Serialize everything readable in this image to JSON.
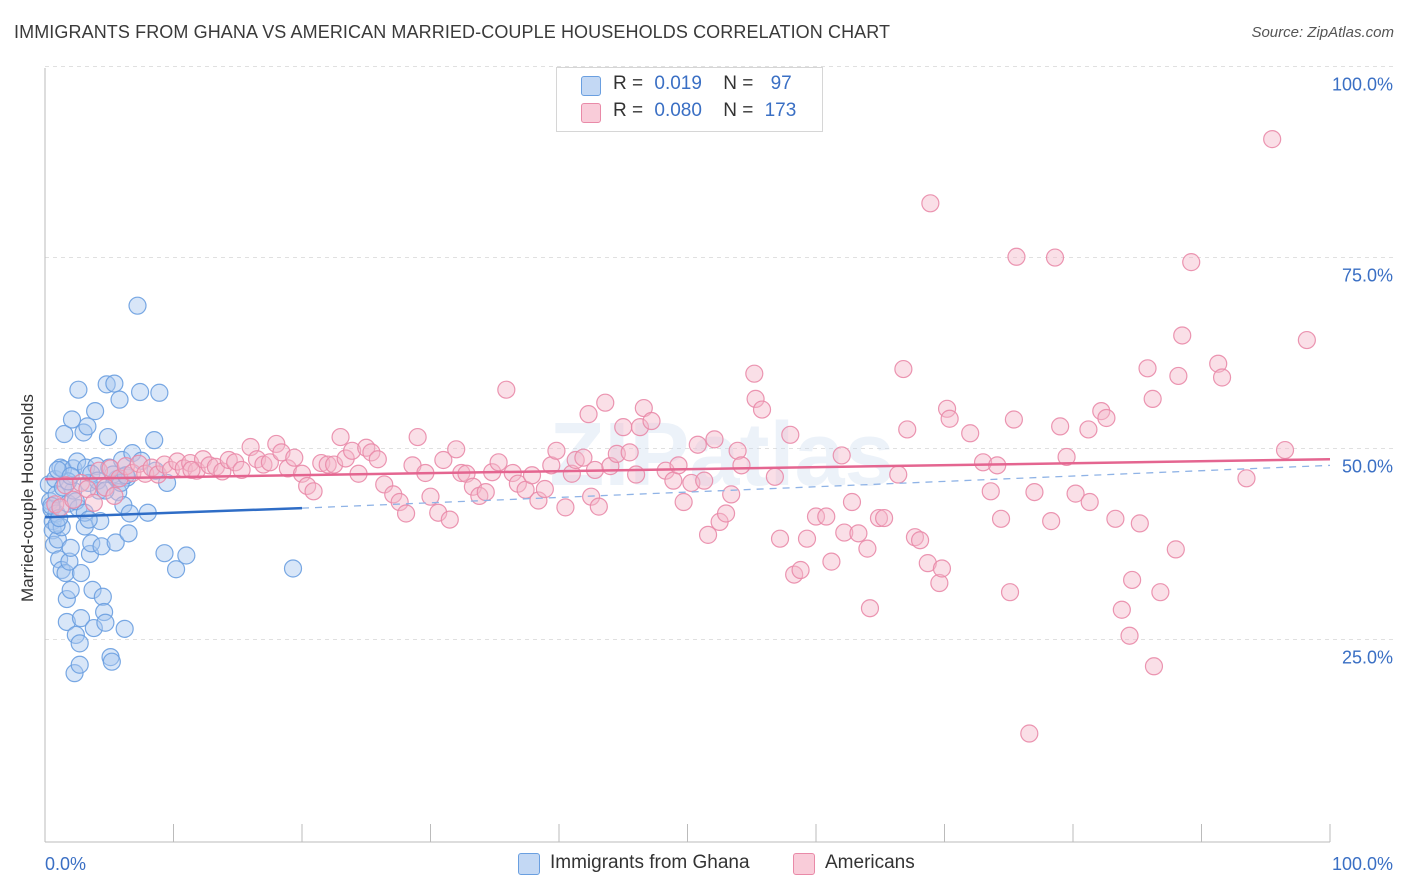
{
  "title": "IMMIGRANTS FROM GHANA VS AMERICAN MARRIED-COUPLE HOUSEHOLDS CORRELATION CHART",
  "source": "Source: ZipAtlas.com",
  "watermark": "ZIPatlas",
  "legend": {
    "rows": [
      {
        "r_label": "R =",
        "r_value": "0.019",
        "n_label": "N =",
        "n_value": "97"
      },
      {
        "r_label": "R =",
        "r_value": "0.080",
        "n_label": "N =",
        "n_value": "173"
      }
    ]
  },
  "bottom_legend": [
    "Immigrants from Ghana",
    "Americans"
  ],
  "colors": {
    "ghana_fill": "#a9c8f0",
    "ghana_stroke": "#6a9fe0",
    "ghana_line": "#2f6dc6",
    "americans_fill": "#f5b7ca",
    "americans_stroke": "#e98aa8",
    "americans_line": "#e46590",
    "axis_text": "#3a6fc4",
    "grid": "#e0e0e0"
  },
  "chart_data": {
    "type": "scatter",
    "title": "IMMIGRANTS FROM GHANA VS AMERICAN MARRIED-COUPLE HOUSEHOLDS CORRELATION CHART",
    "xlabel": "",
    "ylabel": "Married-couple Households",
    "xlim": [
      0,
      100
    ],
    "ylim": [
      0,
      105
    ],
    "x_tick_labels": [
      "0.0%",
      "100.0%"
    ],
    "y_ticks": [
      25,
      50,
      75,
      100
    ],
    "y_tick_labels": [
      "25.0%",
      "50.0%",
      "75.0%",
      "100.0%"
    ],
    "grid": true,
    "legend_position": "top-center",
    "series": [
      {
        "name": "Immigrants from Ghana",
        "r": 0.019,
        "n": 97,
        "trend": {
          "x": [
            0,
            20
          ],
          "y": [
            42.5,
            43.7
          ],
          "dashed_extension_to": [
            100,
            49.3
          ]
        },
        "points": [
          [
            0.3,
            46.8
          ],
          [
            0.4,
            44.6
          ],
          [
            0.5,
            43.6
          ],
          [
            0.6,
            42.0
          ],
          [
            0.6,
            40.8
          ],
          [
            0.7,
            38.9
          ],
          [
            0.8,
            47.5
          ],
          [
            0.9,
            45.5
          ],
          [
            0.9,
            43.0
          ],
          [
            1.0,
            39.6
          ],
          [
            1.1,
            37.0
          ],
          [
            1.2,
            49.0
          ],
          [
            1.3,
            41.2
          ],
          [
            1.3,
            35.6
          ],
          [
            1.4,
            48.8
          ],
          [
            1.5,
            53.4
          ],
          [
            1.6,
            35.2
          ],
          [
            1.7,
            31.8
          ],
          [
            1.7,
            28.8
          ],
          [
            1.8,
            44.3
          ],
          [
            1.9,
            36.7
          ],
          [
            2.0,
            38.5
          ],
          [
            2.0,
            33.0
          ],
          [
            2.1,
            55.3
          ],
          [
            2.2,
            48.9
          ],
          [
            2.2,
            46.0
          ],
          [
            2.3,
            22.1
          ],
          [
            2.4,
            27.1
          ],
          [
            2.5,
            49.8
          ],
          [
            2.6,
            59.2
          ],
          [
            2.6,
            43.7
          ],
          [
            2.7,
            26.0
          ],
          [
            2.7,
            23.2
          ],
          [
            2.8,
            35.2
          ],
          [
            2.8,
            29.3
          ],
          [
            3.0,
            53.6
          ],
          [
            3.1,
            41.3
          ],
          [
            3.2,
            49.0
          ],
          [
            3.3,
            54.4
          ],
          [
            3.4,
            47.0
          ],
          [
            3.5,
            37.7
          ],
          [
            3.6,
            39.1
          ],
          [
            3.7,
            33.0
          ],
          [
            3.8,
            28.0
          ],
          [
            3.9,
            56.4
          ],
          [
            4.0,
            49.2
          ],
          [
            4.2,
            46.0
          ],
          [
            4.3,
            42.0
          ],
          [
            4.4,
            38.7
          ],
          [
            4.5,
            32.1
          ],
          [
            4.6,
            30.1
          ],
          [
            4.7,
            28.7
          ],
          [
            4.8,
            59.9
          ],
          [
            4.9,
            53.0
          ],
          [
            5.0,
            49.0
          ],
          [
            5.1,
            24.2
          ],
          [
            5.2,
            23.6
          ],
          [
            5.4,
            60.0
          ],
          [
            5.5,
            39.2
          ],
          [
            5.6,
            47.5
          ],
          [
            5.7,
            45.8
          ],
          [
            5.8,
            57.9
          ],
          [
            6.0,
            50.0
          ],
          [
            6.1,
            44.1
          ],
          [
            6.2,
            27.9
          ],
          [
            6.4,
            47.7
          ],
          [
            6.5,
            40.4
          ],
          [
            6.6,
            43.0
          ],
          [
            6.8,
            50.9
          ],
          [
            7.2,
            70.2
          ],
          [
            7.4,
            58.9
          ],
          [
            7.5,
            49.9
          ],
          [
            8.0,
            43.1
          ],
          [
            8.5,
            52.6
          ],
          [
            8.6,
            48.6
          ],
          [
            8.9,
            58.8
          ],
          [
            9.3,
            37.8
          ],
          [
            9.5,
            47.0
          ],
          [
            10.2,
            35.7
          ],
          [
            11.0,
            37.5
          ],
          [
            0.5,
            44.0
          ],
          [
            0.9,
            41.5
          ],
          [
            1.1,
            42.4
          ],
          [
            1.4,
            46.4
          ],
          [
            1.8,
            47.2
          ],
          [
            2.4,
            44.6
          ],
          [
            3.1,
            43.1
          ],
          [
            3.6,
            48.2
          ],
          [
            4.1,
            47.3
          ],
          [
            4.7,
            46.0
          ],
          [
            5.3,
            48.1
          ],
          [
            5.9,
            47.0
          ],
          [
            6.3,
            48.0
          ],
          [
            1.0,
            48.7
          ],
          [
            2.0,
            47.9
          ],
          [
            3.4,
            42.2
          ],
          [
            19.3,
            35.8
          ]
        ]
      },
      {
        "name": "Americans",
        "r": 0.08,
        "n": 173,
        "trend": {
          "x": [
            0,
            100
          ],
          "y": [
            47.5,
            50.1
          ]
        },
        "points": [
          [
            0.8,
            44.2
          ],
          [
            1.2,
            43.8
          ],
          [
            1.6,
            46.7
          ],
          [
            2.2,
            44.8
          ],
          [
            2.8,
            47.0
          ],
          [
            3.3,
            46.2
          ],
          [
            3.8,
            44.4
          ],
          [
            4.2,
            48.6
          ],
          [
            4.7,
            46.4
          ],
          [
            5.1,
            48.9
          ],
          [
            5.4,
            45.3
          ],
          [
            5.8,
            47.6
          ],
          [
            6.3,
            49.2
          ],
          [
            6.8,
            48.3
          ],
          [
            7.3,
            49.5
          ],
          [
            7.8,
            48.2
          ],
          [
            8.3,
            49.0
          ],
          [
            8.8,
            48.1
          ],
          [
            9.3,
            49.4
          ],
          [
            9.8,
            48.7
          ],
          [
            10.3,
            49.8
          ],
          [
            10.8,
            48.9
          ],
          [
            11.3,
            49.6
          ],
          [
            11.8,
            48.6
          ],
          [
            12.3,
            50.1
          ],
          [
            12.8,
            49.3
          ],
          [
            13.3,
            49.1
          ],
          [
            13.8,
            48.5
          ],
          [
            14.3,
            50.0
          ],
          [
            14.8,
            49.7
          ],
          [
            15.3,
            48.7
          ],
          [
            16.0,
            51.7
          ],
          [
            16.5,
            50.1
          ],
          [
            17.0,
            49.4
          ],
          [
            17.5,
            49.7
          ],
          [
            18.0,
            52.1
          ],
          [
            18.4,
            51.0
          ],
          [
            18.9,
            48.9
          ],
          [
            19.4,
            50.3
          ],
          [
            20.0,
            48.2
          ],
          [
            20.4,
            46.6
          ],
          [
            20.9,
            45.9
          ],
          [
            21.5,
            49.6
          ],
          [
            22.0,
            49.4
          ],
          [
            22.5,
            49.4
          ],
          [
            23.0,
            53.0
          ],
          [
            23.4,
            50.2
          ],
          [
            23.9,
            51.2
          ],
          [
            24.4,
            48.2
          ],
          [
            25.0,
            51.6
          ],
          [
            25.4,
            51.0
          ],
          [
            25.9,
            50.1
          ],
          [
            26.4,
            46.8
          ],
          [
            27.1,
            45.5
          ],
          [
            27.6,
            44.5
          ],
          [
            28.1,
            43.0
          ],
          [
            28.6,
            49.3
          ],
          [
            29.0,
            53.0
          ],
          [
            29.6,
            48.3
          ],
          [
            30.0,
            45.2
          ],
          [
            30.6,
            43.1
          ],
          [
            31.0,
            50.0
          ],
          [
            31.5,
            42.2
          ],
          [
            32.0,
            51.4
          ],
          [
            32.4,
            48.3
          ],
          [
            32.8,
            48.2
          ],
          [
            33.3,
            46.5
          ],
          [
            33.8,
            45.3
          ],
          [
            34.3,
            45.8
          ],
          [
            34.8,
            48.4
          ],
          [
            35.3,
            49.7
          ],
          [
            35.9,
            59.2
          ],
          [
            36.4,
            48.3
          ],
          [
            36.8,
            46.9
          ],
          [
            37.4,
            46.1
          ],
          [
            37.9,
            48.0
          ],
          [
            38.4,
            44.7
          ],
          [
            38.9,
            46.2
          ],
          [
            39.4,
            49.3
          ],
          [
            39.8,
            51.2
          ],
          [
            40.5,
            43.8
          ],
          [
            41.0,
            48.2
          ],
          [
            41.3,
            50.0
          ],
          [
            41.9,
            50.3
          ],
          [
            42.5,
            45.2
          ],
          [
            42.8,
            48.7
          ],
          [
            43.1,
            43.9
          ],
          [
            43.6,
            57.5
          ],
          [
            44.0,
            49.2
          ],
          [
            44.5,
            50.8
          ],
          [
            45.0,
            54.3
          ],
          [
            45.5,
            51.0
          ],
          [
            46.0,
            48.1
          ],
          [
            46.3,
            54.3
          ],
          [
            46.6,
            56.8
          ],
          [
            47.2,
            55.1
          ],
          [
            48.3,
            48.6
          ],
          [
            48.9,
            47.3
          ],
          [
            49.3,
            49.3
          ],
          [
            49.7,
            44.5
          ],
          [
            50.3,
            47.0
          ],
          [
            50.8,
            52.0
          ],
          [
            51.3,
            47.3
          ],
          [
            51.6,
            40.2
          ],
          [
            52.1,
            52.7
          ],
          [
            52.5,
            41.9
          ],
          [
            53.0,
            43.0
          ],
          [
            53.4,
            45.5
          ],
          [
            53.9,
            51.2
          ],
          [
            54.2,
            49.3
          ],
          [
            55.2,
            61.3
          ],
          [
            55.3,
            58.0
          ],
          [
            55.8,
            56.6
          ],
          [
            56.8,
            47.8
          ],
          [
            57.2,
            39.7
          ],
          [
            58.0,
            53.3
          ],
          [
            58.3,
            35.0
          ],
          [
            58.8,
            35.6
          ],
          [
            59.3,
            39.7
          ],
          [
            60.0,
            42.6
          ],
          [
            60.8,
            42.6
          ],
          [
            61.2,
            36.7
          ],
          [
            62.0,
            50.6
          ],
          [
            62.2,
            40.5
          ],
          [
            62.8,
            44.5
          ],
          [
            63.3,
            40.4
          ],
          [
            64.0,
            38.4
          ],
          [
            64.2,
            30.6
          ],
          [
            64.9,
            42.4
          ],
          [
            65.3,
            42.4
          ],
          [
            66.4,
            48.1
          ],
          [
            66.8,
            61.9
          ],
          [
            67.1,
            54.0
          ],
          [
            67.7,
            39.9
          ],
          [
            68.1,
            39.5
          ],
          [
            68.7,
            36.5
          ],
          [
            69.6,
            33.9
          ],
          [
            69.8,
            35.8
          ],
          [
            70.2,
            56.7
          ],
          [
            70.4,
            55.4
          ],
          [
            72.0,
            53.5
          ],
          [
            73.0,
            49.7
          ],
          [
            73.6,
            45.9
          ],
          [
            74.1,
            49.3
          ],
          [
            74.4,
            42.3
          ],
          [
            75.1,
            32.7
          ],
          [
            75.4,
            55.3
          ],
          [
            77.0,
            45.8
          ],
          [
            76.6,
            14.2
          ],
          [
            78.3,
            42.0
          ],
          [
            78.6,
            76.5
          ],
          [
            79.0,
            54.4
          ],
          [
            79.5,
            50.4
          ],
          [
            80.2,
            45.6
          ],
          [
            81.2,
            54.0
          ],
          [
            81.3,
            44.5
          ],
          [
            82.2,
            56.4
          ],
          [
            82.6,
            55.5
          ],
          [
            83.3,
            42.3
          ],
          [
            83.8,
            30.4
          ],
          [
            84.4,
            27.0
          ],
          [
            84.6,
            34.3
          ],
          [
            85.2,
            41.7
          ],
          [
            85.8,
            62.0
          ],
          [
            86.2,
            58.0
          ],
          [
            86.3,
            23.0
          ],
          [
            86.8,
            32.7
          ],
          [
            88.0,
            38.3
          ],
          [
            88.2,
            61.0
          ],
          [
            88.5,
            66.3
          ],
          [
            89.2,
            75.9
          ],
          [
            91.3,
            62.6
          ],
          [
            91.6,
            60.8
          ],
          [
            93.5,
            47.6
          ],
          [
            95.5,
            92.0
          ],
          [
            96.5,
            51.3
          ],
          [
            98.2,
            65.7
          ],
          [
            68.9,
            83.6
          ],
          [
            75.6,
            76.6
          ],
          [
            42.3,
            56.0
          ],
          [
            11.4,
            48.7
          ]
        ]
      }
    ]
  }
}
